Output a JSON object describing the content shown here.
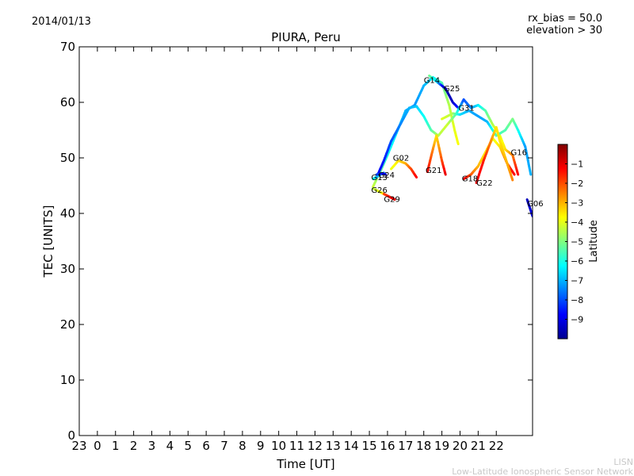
{
  "header": {
    "date": "2014/01/13",
    "rx_bias": "rx_bias = 50.0",
    "elevation": "elevation > 30"
  },
  "footer": {
    "line1": "LISN",
    "line2": "Low-Latitude Ionospheric Sensor Network"
  },
  "chart_data": {
    "type": "scatter",
    "title": "PIURA, Peru",
    "xlabel": "Time [UT]",
    "ylabel": "TEC [UNITS]",
    "xlim": [
      -1,
      24
    ],
    "ylim": [
      0,
      70
    ],
    "xticks": [
      {
        "v": -1,
        "label": "23"
      },
      {
        "v": 0,
        "label": "0"
      },
      {
        "v": 1,
        "label": "1"
      },
      {
        "v": 2,
        "label": "2"
      },
      {
        "v": 3,
        "label": "3"
      },
      {
        "v": 4,
        "label": "4"
      },
      {
        "v": 5,
        "label": "5"
      },
      {
        "v": 6,
        "label": "6"
      },
      {
        "v": 7,
        "label": "7"
      },
      {
        "v": 8,
        "label": "8"
      },
      {
        "v": 9,
        "label": "9"
      },
      {
        "v": 10,
        "label": "10"
      },
      {
        "v": 11,
        "label": "11"
      },
      {
        "v": 12,
        "label": "12"
      },
      {
        "v": 13,
        "label": "13"
      },
      {
        "v": 14,
        "label": "14"
      },
      {
        "v": 15,
        "label": "15"
      },
      {
        "v": 16,
        "label": "16"
      },
      {
        "v": 17,
        "label": "17"
      },
      {
        "v": 18,
        "label": "18"
      },
      {
        "v": 19,
        "label": "19"
      },
      {
        "v": 20,
        "label": "20"
      },
      {
        "v": 21,
        "label": "21"
      },
      {
        "v": 22,
        "label": "22"
      }
    ],
    "yticks": [
      0,
      10,
      20,
      30,
      40,
      50,
      60,
      70
    ],
    "colorbar": {
      "label": "Latitude",
      "min": -10,
      "max": 0,
      "ticks": [
        -1,
        -2,
        -3,
        -4,
        -5,
        -6,
        -7,
        -8,
        -9
      ],
      "tick_labels": [
        "−1",
        "−2",
        "−3",
        "−4",
        "−5",
        "−6",
        "−7",
        "−8",
        "−9"
      ],
      "colors": [
        "#00008f",
        "#0000ff",
        "#0080ff",
        "#00ffff",
        "#80ff80",
        "#ffff00",
        "#ff8000",
        "#ff0000",
        "#800000"
      ]
    },
    "series": [
      {
        "name": "G14",
        "label_at": [
          18.0,
          63.5
        ],
        "pts": [
          [
            15.2,
            44.8,
            -4.2
          ],
          [
            15.6,
            47.5,
            -5.2
          ],
          [
            16.0,
            50.5,
            -6.0
          ],
          [
            16.5,
            54.5,
            -6.5
          ],
          [
            17.0,
            58.5,
            -7.0
          ],
          [
            17.5,
            59.5,
            -7.3
          ],
          [
            18.0,
            63.0,
            -7.0
          ],
          [
            18.5,
            64.5,
            -6.5
          ],
          [
            19.0,
            63.5,
            -5.5
          ],
          [
            19.4,
            59.5,
            -4.5
          ],
          [
            19.7,
            55.0,
            -4.0
          ],
          [
            19.9,
            52.5,
            -3.8
          ]
        ]
      },
      {
        "name": "G25",
        "label_at": [
          19.1,
          62.0
        ],
        "pts": [
          [
            18.3,
            64.8,
            -5.0
          ],
          [
            18.8,
            63.5,
            -7.0
          ],
          [
            19.2,
            62.5,
            -9.8
          ],
          [
            19.6,
            60.0,
            -9.4
          ],
          [
            19.9,
            59.0,
            -8.5
          ]
        ]
      },
      {
        "name": "G31",
        "label_at": [
          19.9,
          58.5
        ],
        "pts": [
          [
            15.4,
            46.5,
            -8.8
          ],
          [
            15.8,
            49.5,
            -8.5
          ],
          [
            16.2,
            53.0,
            -8.0
          ],
          [
            16.7,
            56.0,
            -7.5
          ],
          [
            17.2,
            59.0,
            -7.0
          ],
          [
            17.6,
            59.3,
            -6.8
          ],
          [
            18.0,
            57.5,
            -6.2
          ],
          [
            18.4,
            55.0,
            -5.5
          ],
          [
            18.8,
            54.0,
            -4.5
          ],
          [
            19.3,
            56.0,
            -4.2
          ],
          [
            19.8,
            58.0,
            -5.5
          ],
          [
            20.2,
            60.5,
            -8.0
          ],
          [
            20.6,
            59.0,
            -7.5
          ],
          [
            21.0,
            59.5,
            -6.5
          ],
          [
            21.4,
            58.5,
            -5.5
          ],
          [
            21.8,
            56.0,
            -4.5
          ],
          [
            22.2,
            54.0,
            -4.0
          ],
          [
            22.5,
            51.5,
            -3.5
          ],
          [
            22.9,
            50.5,
            -2.5
          ],
          [
            23.2,
            47.0,
            -1.2
          ]
        ]
      },
      {
        "name": "G16",
        "label_at": [
          22.8,
          50.5
        ],
        "pts": [
          [
            19.0,
            57.0,
            -4.0
          ],
          [
            19.6,
            58.0,
            -4.5
          ],
          [
            20.0,
            57.8,
            -6.5
          ],
          [
            20.5,
            58.5,
            -7.0
          ],
          [
            21.0,
            57.5,
            -7.2
          ],
          [
            21.5,
            56.5,
            -7.0
          ],
          [
            22.0,
            54.0,
            -5.5
          ],
          [
            22.5,
            55.0,
            -5.5
          ],
          [
            22.9,
            57.0,
            -5.0
          ],
          [
            23.2,
            55.0,
            -6.0
          ],
          [
            23.6,
            52.0,
            -7.2
          ],
          [
            23.9,
            47.0,
            -7.0
          ]
        ]
      },
      {
        "name": "G02",
        "label_at": [
          16.3,
          49.5
        ],
        "pts": [
          [
            16.2,
            48.0,
            -4.0
          ],
          [
            16.6,
            49.5,
            -3.5
          ],
          [
            17.0,
            49.0,
            -3.0
          ],
          [
            17.3,
            48.0,
            -2.0
          ],
          [
            17.6,
            46.5,
            -1.2
          ]
        ]
      },
      {
        "name": "G21",
        "label_at": [
          18.1,
          47.3
        ],
        "pts": [
          [
            18.2,
            47.5,
            -1.2
          ],
          [
            18.5,
            51.5,
            -2.5
          ],
          [
            18.7,
            54.0,
            -3.5
          ],
          [
            19.0,
            49.5,
            -2.0
          ],
          [
            19.2,
            47.0,
            -1.0
          ]
        ]
      },
      {
        "name": "G18",
        "label_at": [
          20.1,
          45.8
        ],
        "pts": [
          [
            20.2,
            46.2,
            -1.0
          ],
          [
            20.6,
            47.0,
            -2.0
          ],
          [
            21.0,
            48.5,
            -3.0
          ],
          [
            21.4,
            51.0,
            -3.5
          ],
          [
            21.8,
            53.5,
            -4.0
          ],
          [
            22.2,
            52.0,
            -3.5
          ],
          [
            22.6,
            49.0,
            -2.0
          ],
          [
            23.0,
            47.0,
            -1.2
          ]
        ]
      },
      {
        "name": "G22",
        "label_at": [
          20.9,
          45.0
        ],
        "pts": [
          [
            20.9,
            45.5,
            -1.0
          ],
          [
            21.3,
            49.5,
            -1.5
          ],
          [
            21.7,
            53.0,
            -2.5
          ],
          [
            22.0,
            55.5,
            -3.5
          ],
          [
            22.2,
            53.0,
            -3.5
          ],
          [
            22.6,
            49.0,
            -3.0
          ],
          [
            22.9,
            46.0,
            -2.5
          ]
        ]
      },
      {
        "name": "G13",
        "label_at": [
          15.1,
          46.0
        ],
        "pts": [
          [
            15.2,
            46.2,
            -6.0
          ],
          [
            15.5,
            46.8,
            -7.0
          ],
          [
            15.8,
            47.3,
            -7.5
          ]
        ]
      },
      {
        "name": "G24",
        "label_at": [
          15.5,
          46.4
        ],
        "pts": [
          [
            15.4,
            47.0,
            -8.0
          ],
          [
            15.7,
            47.2,
            -8.5
          ],
          [
            15.9,
            47.0,
            -9.0
          ]
        ]
      },
      {
        "name": "G26",
        "label_at": [
          15.1,
          43.7
        ],
        "pts": [
          [
            15.2,
            44.5,
            -4.5
          ],
          [
            15.5,
            44.0,
            -4.0
          ],
          [
            15.8,
            43.5,
            -3.5
          ]
        ]
      },
      {
        "name": "G29",
        "label_at": [
          15.8,
          42.1
        ],
        "pts": [
          [
            15.8,
            43.5,
            -2.0
          ],
          [
            16.1,
            43.0,
            -1.5
          ],
          [
            16.4,
            42.5,
            -1.0
          ]
        ]
      },
      {
        "name": "G06",
        "label_at": [
          23.7,
          41.3
        ],
        "pts": [
          [
            23.7,
            42.5,
            -9.5
          ],
          [
            23.85,
            41.0,
            -9.3
          ],
          [
            24.0,
            39.5,
            -9.0
          ]
        ]
      }
    ]
  }
}
